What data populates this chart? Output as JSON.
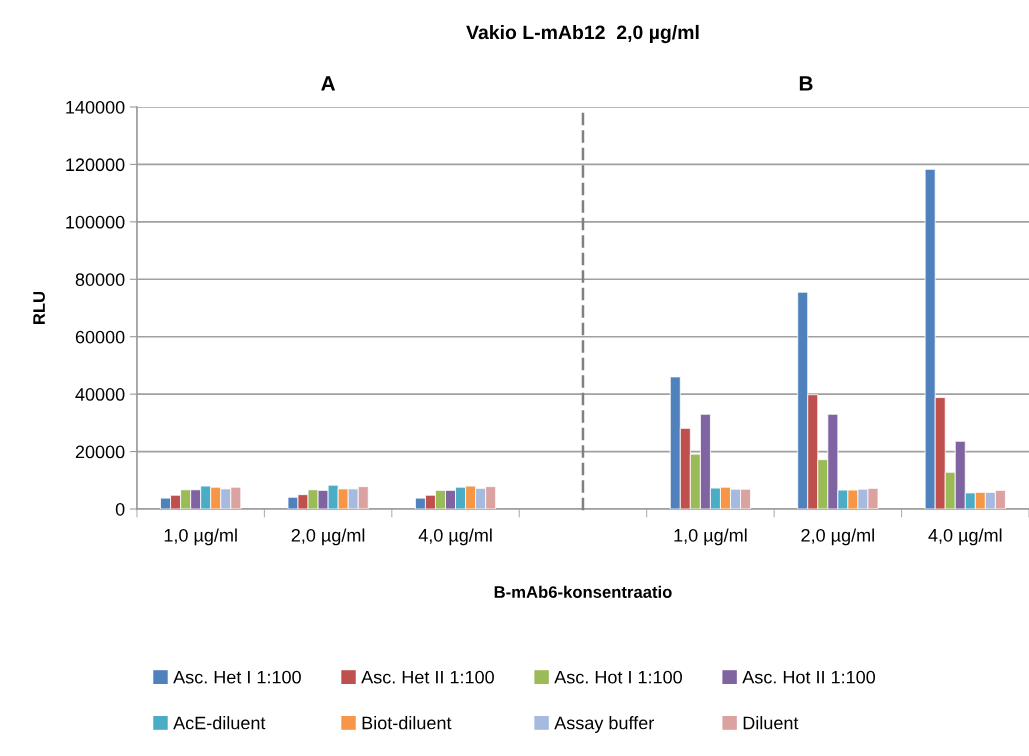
{
  "chart_data": [
    {
      "type": "bar",
      "title": "Vakio L-mAb12  2,0 µg/ml",
      "subtitle": "A",
      "xlabel": "B-mAb6-konsentraatio",
      "ylabel": "RLU",
      "categories": [
        "1,0 µg/ml",
        "2,0 µg/ml",
        "4,0 µg/ml"
      ],
      "series": [
        {
          "name": "Asc. Het I 1:100",
          "color": "#4f81bd",
          "values": [
            3800,
            4100,
            3800
          ]
        },
        {
          "name": "Asc. Het II 1:100",
          "color": "#c0504d",
          "values": [
            4800,
            5000,
            4800
          ]
        },
        {
          "name": "Asc. Hot I 1:100",
          "color": "#9bbb59",
          "values": [
            6700,
            6700,
            6500
          ]
        },
        {
          "name": "Asc. Hot II 1:100",
          "color": "#8064a2",
          "values": [
            6700,
            6500,
            6500
          ]
        },
        {
          "name": "AcE-diluent",
          "color": "#4bacc6",
          "values": [
            8000,
            8300,
            7600
          ]
        },
        {
          "name": "Biot-diluent",
          "color": "#f79646",
          "values": [
            7600,
            7000,
            8000
          ]
        },
        {
          "name": "Assay buffer",
          "color": "#a6b9df",
          "values": [
            7000,
            7000,
            7200
          ]
        },
        {
          "name": "Diluent",
          "color": "#dba3a0",
          "values": [
            7600,
            7800,
            7800
          ]
        }
      ],
      "ylim": [
        0,
        140000
      ],
      "yticks": [
        0,
        20000,
        40000,
        60000,
        80000,
        100000,
        120000,
        140000
      ],
      "grid": "y",
      "legend": "bottom"
    },
    {
      "type": "bar",
      "subtitle": "B",
      "categories": [
        "1,0 µg/ml",
        "2,0 µg/ml",
        "4,0 µg/ml"
      ],
      "series": [
        {
          "name": "Asc. Het I 1:100",
          "color": "#4f81bd",
          "values": [
            46000,
            75500,
            118300
          ]
        },
        {
          "name": "Asc. Het II 1:100",
          "color": "#c0504d",
          "values": [
            28100,
            39800,
            38800
          ]
        },
        {
          "name": "Asc. Hot I 1:100",
          "color": "#9bbb59",
          "values": [
            19100,
            17200,
            12800
          ]
        },
        {
          "name": "Asc. Hot II 1:100",
          "color": "#8064a2",
          "values": [
            33000,
            33000,
            23600
          ]
        },
        {
          "name": "AcE-diluent",
          "color": "#4bacc6",
          "values": [
            7300,
            6600,
            5600
          ]
        },
        {
          "name": "Biot-diluent",
          "color": "#f79646",
          "values": [
            7600,
            6600,
            5800
          ]
        },
        {
          "name": "Assay buffer",
          "color": "#a6b9df",
          "values": [
            6900,
            6900,
            5800
          ]
        },
        {
          "name": "Diluent",
          "color": "#dba3a0",
          "values": [
            6900,
            7200,
            6500
          ]
        }
      ],
      "ylim": [
        0,
        140000
      ],
      "yticks": [
        0,
        20000,
        40000,
        60000,
        80000,
        100000,
        120000,
        140000
      ],
      "tick_labels": "x",
      "grid": "y",
      "legend": "bottom"
    }
  ]
}
